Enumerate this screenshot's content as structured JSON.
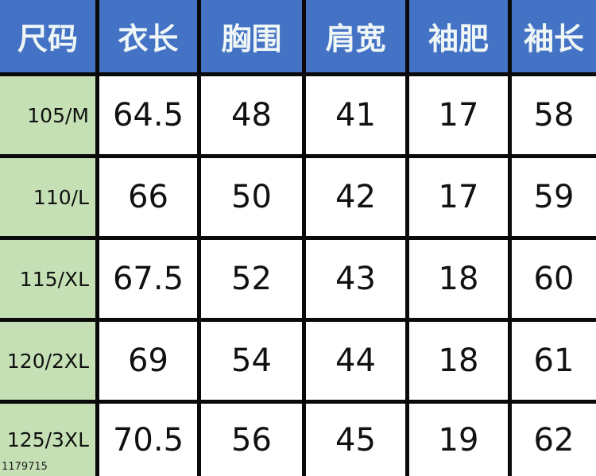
{
  "table": {
    "headers": [
      "尺码",
      "衣长",
      "胸围",
      "肩宽",
      "袖肥",
      "袖长"
    ],
    "rows": [
      [
        "105/M",
        "64.5",
        "48",
        "41",
        "17",
        "58"
      ],
      [
        "110/L",
        "66",
        "50",
        "42",
        "17",
        "59"
      ],
      [
        "115/XL",
        "67.5",
        "52",
        "43",
        "18",
        "60"
      ],
      [
        "120/2XL",
        "69",
        "54",
        "44",
        "18",
        "61"
      ],
      [
        "125/3XL",
        "70.5",
        "56",
        "45",
        "19",
        "62"
      ]
    ]
  },
  "watermark": "1179715",
  "colors": {
    "header_bg": "#4472c4",
    "size_col_bg": "#c5e0b4",
    "border": "#0a0a0a"
  }
}
